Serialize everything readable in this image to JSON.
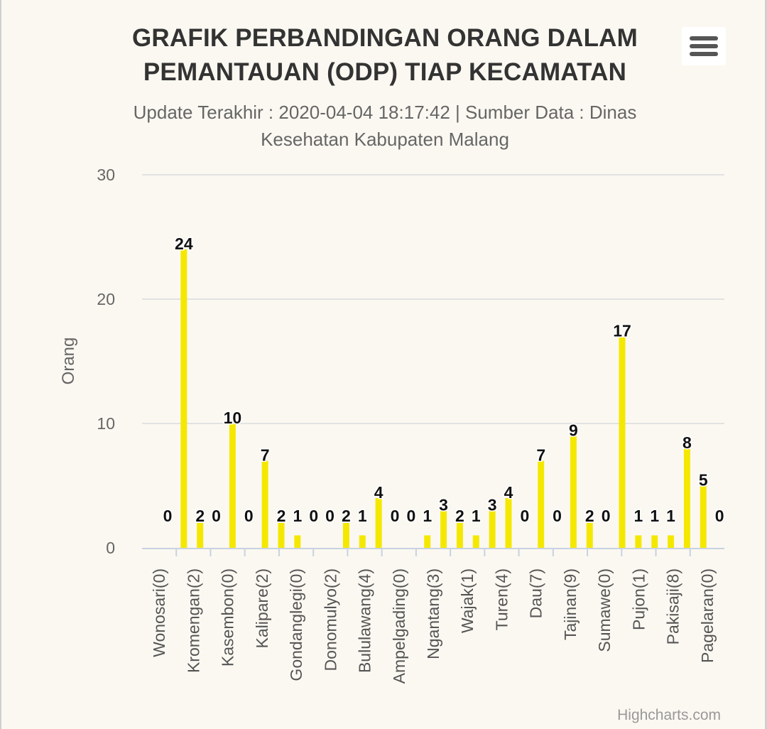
{
  "header": {
    "title_line1": "GRAFIK PERBANDINGAN ORANG DALAM",
    "title_line2": "PEMANTAUAN (ODP) TIAP KECAMATAN",
    "subtitle_line1": "Update Terakhir : 2020-04-04 18:17:42 | Sumber Data : Dinas",
    "subtitle_line2": "Kesehatan Kabupaten Malang",
    "menu_icon": "hamburger-menu-icon"
  },
  "credits": "Highcharts.com",
  "colors": {
    "bar": "#f5e800",
    "grid": "#e2e2e2",
    "axis": "#c8d2e3"
  },
  "chart_data": {
    "type": "bar",
    "ylabel": "Orang",
    "ylim": [
      0,
      30
    ],
    "yticks": [
      0,
      10,
      20,
      30
    ],
    "grid": true,
    "categories": [
      "Wonosari(0)",
      "Kromengan(2)",
      "Kasembon(0)",
      "Kalipare(2)",
      "Gondanglegi(0)",
      "Donomulyo(2)",
      "Bululawang(4)",
      "Ampelgading(0)",
      "Ngantang(3)",
      "Wajak(1)",
      "Turen(4)",
      "Dau(7)",
      "Tajinan(9)",
      "Sumawe(0)",
      "Pujon(1)",
      "Pakisaji(8)",
      "Pagelaran(0)"
    ],
    "bars": [
      {
        "value": 0,
        "label": "0"
      },
      {
        "value": 24,
        "label": "24"
      },
      {
        "value": 2,
        "label": "2"
      },
      {
        "value": 0,
        "label": "0"
      },
      {
        "value": 10,
        "label": "10"
      },
      {
        "value": 0,
        "label": "0"
      },
      {
        "value": 7,
        "label": "7"
      },
      {
        "value": 2,
        "label": "2"
      },
      {
        "value": 1,
        "label": "1"
      },
      {
        "value": 0,
        "label": "0"
      },
      {
        "value": 0,
        "label": "0"
      },
      {
        "value": 2,
        "label": "2"
      },
      {
        "value": 1,
        "label": "1"
      },
      {
        "value": 4,
        "label": "4"
      },
      {
        "value": 0,
        "label": "0"
      },
      {
        "value": 0,
        "label": "0"
      },
      {
        "value": 1,
        "label": "1"
      },
      {
        "value": 3,
        "label": "3"
      },
      {
        "value": 2,
        "label": "2"
      },
      {
        "value": 1,
        "label": "1"
      },
      {
        "value": 3,
        "label": "3"
      },
      {
        "value": 4,
        "label": "4"
      },
      {
        "value": 0,
        "label": "0"
      },
      {
        "value": 7,
        "label": "7"
      },
      {
        "value": 0,
        "label": "0"
      },
      {
        "value": 9,
        "label": "9"
      },
      {
        "value": 2,
        "label": "2"
      },
      {
        "value": 0,
        "label": "0"
      },
      {
        "value": 17,
        "label": "17"
      },
      {
        "value": 1,
        "label": "1"
      },
      {
        "value": 1,
        "label": "1"
      },
      {
        "value": 1,
        "label": "1"
      },
      {
        "value": 8,
        "label": "8"
      },
      {
        "value": 5,
        "label": "5"
      },
      {
        "value": 0,
        "label": "0"
      }
    ]
  }
}
